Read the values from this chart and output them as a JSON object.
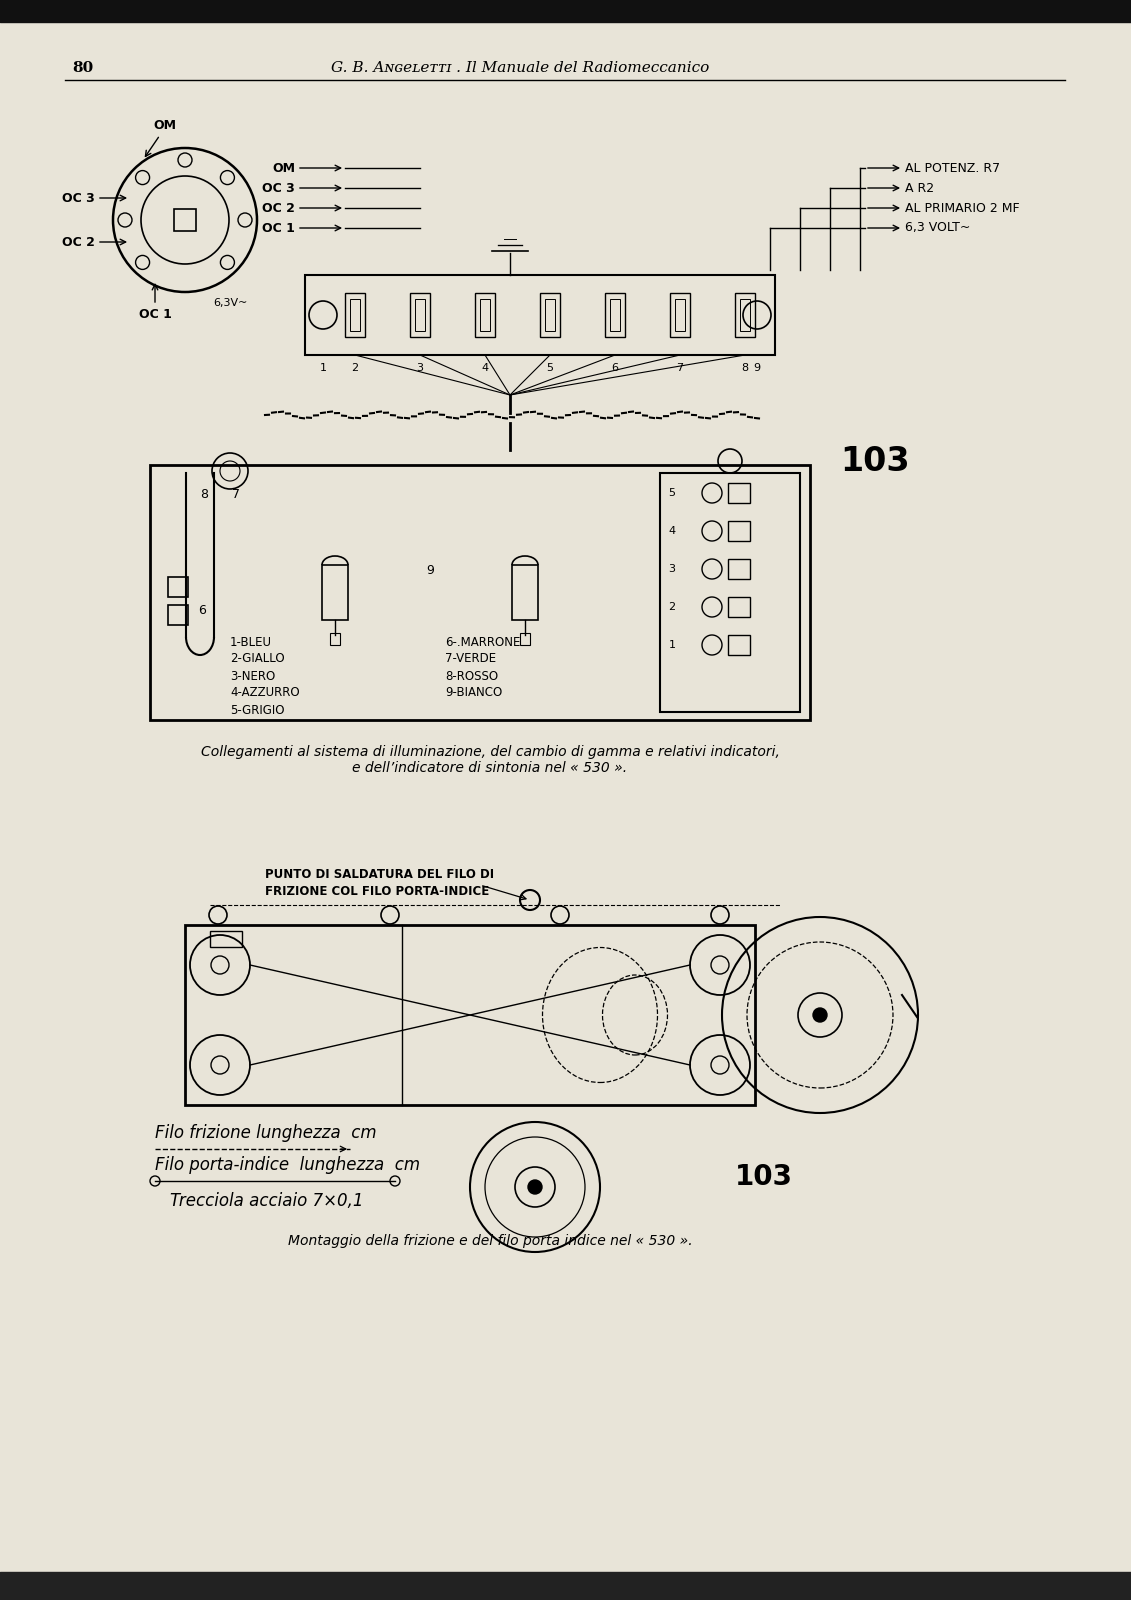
{
  "page_number": "80",
  "header_text": "G. B. Aɴɢеlеtti . Il Manuale del Radiomeccanico",
  "header_text2": "G. B. ANGELETTI . Il Manuale del Radiomeccanico",
  "bg_color": "#e8e4d8",
  "fg_color": "#1a1a1a",
  "diagram1_caption": "Collegamenti al sistema di illuminazione, del cambio di gamma e relativi indicatori,\ne dell’indicatore di sintonia nel « 530 ».",
  "color_legend_left": [
    "1-BLEU",
    "2-GIALLO",
    "3-NERO",
    "4-AZZURRO",
    "5-GRIGIO"
  ],
  "color_legend_right": [
    "6-.MARRONE",
    "7-VERDE",
    "8-ROSSO",
    "9-BIANCO"
  ],
  "diagram2_annotation": "PUNTO DI SALDATURA DEL FILO DI\nFRIZIONE COL FILO PORTA-INDICE",
  "caption_line1": "Filo frizione lunghezza  cm",
  "caption_line2": "Filo porta-indice  lunghezza  cm",
  "caption_line3": "Trecciola acciaio 7×0,1",
  "diagram2_caption": "Montaggio della frizione e del filo porta indice nel « 530 »."
}
